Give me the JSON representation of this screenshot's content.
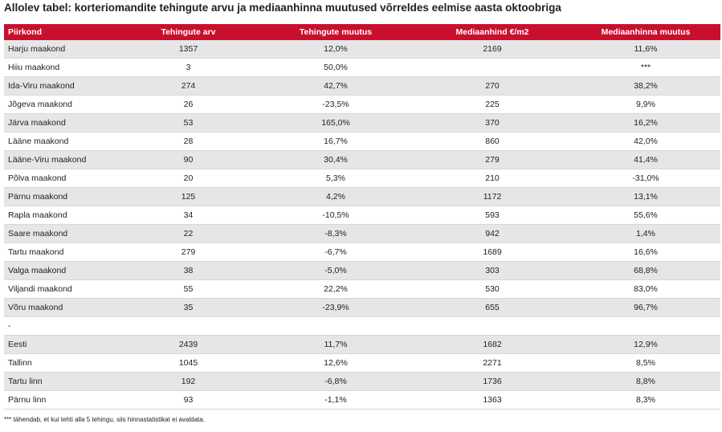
{
  "title": "Allolev tabel: korteriomandite tehingute arvu ja mediaanhinna muutused võrreldes eelmise aasta oktoobriga",
  "table": {
    "headers": [
      "Piirkond",
      "Tehingute arv",
      "Tehingute muutus",
      "Mediaanhind €/m2",
      "Mediaanhinna muutus"
    ],
    "rows": [
      [
        "Harju maakond",
        "1357",
        "12,0%",
        "2169",
        "11,6%"
      ],
      [
        "Hiiu maakond",
        "3",
        "50,0%",
        "",
        "***"
      ],
      [
        "Ida-Viru maakond",
        "274",
        "42,7%",
        "270",
        "38,2%"
      ],
      [
        "Jõgeva maakond",
        "26",
        "-23,5%",
        "225",
        "9,9%"
      ],
      [
        "Järva maakond",
        "53",
        "165,0%",
        "370",
        "16,2%"
      ],
      [
        "Lääne maakond",
        "28",
        "16,7%",
        "860",
        "42,0%"
      ],
      [
        "Lääne-Viru maakond",
        "90",
        "30,4%",
        "279",
        "41,4%"
      ],
      [
        "Põlva maakond",
        "20",
        "5,3%",
        "210",
        "-31,0%"
      ],
      [
        "Pärnu maakond",
        "125",
        "4,2%",
        "1172",
        "13,1%"
      ],
      [
        "Rapla maakond",
        "34",
        "-10,5%",
        "593",
        "55,6%"
      ],
      [
        "Saare maakond",
        "22",
        "-8,3%",
        "942",
        "1,4%"
      ],
      [
        "Tartu maakond",
        "279",
        "-6,7%",
        "1689",
        "16,6%"
      ],
      [
        "Valga maakond",
        "38",
        "-5,0%",
        "303",
        "68,8%"
      ],
      [
        "Viljandi maakond",
        "55",
        "22,2%",
        "530",
        "83,0%"
      ],
      [
        "Võru maakond",
        "35",
        "-23,9%",
        "655",
        "96,7%"
      ],
      [
        "-",
        "",
        "",
        "",
        ""
      ],
      [
        "Eesti",
        "2439",
        "11,7%",
        "1682",
        "12,9%"
      ],
      [
        "Tallinn",
        "1045",
        "12,6%",
        "2271",
        "8,5%"
      ],
      [
        "Tartu linn",
        "192",
        "-6,8%",
        "1736",
        "8,8%"
      ],
      [
        "Pärnu linn",
        "93",
        "-1,1%",
        "1363",
        "8,3%"
      ]
    ]
  },
  "footnote": "*** tähendab, et kui tehti alla 5 tehingu, siis hinnastatistikat ei avaldata."
}
